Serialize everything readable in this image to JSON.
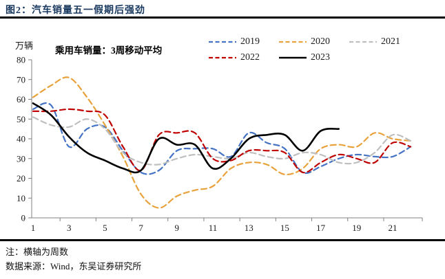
{
  "figure": {
    "title": "图2：汽车销量五一假期后强劲",
    "unit_label": "万辆",
    "annotation": "乘用车销量：3周移动平均",
    "note_axis": "注：横轴为周数",
    "note_source": "数据来源：Wind，东吴证券研究所"
  },
  "legend": {
    "items": [
      "2019",
      "2020",
      "2021",
      "2022",
      "2023"
    ]
  },
  "chart_data": {
    "type": "line",
    "title": "乘用车销量：3周移动平均",
    "xlabel": "周数",
    "ylabel": "万辆",
    "ylim": [
      0,
      80
    ],
    "xlim": [
      0.5,
      22.6
    ],
    "y_ticks": [
      0,
      10,
      20,
      30,
      40,
      50,
      60,
      70,
      80
    ],
    "x_ticks": [
      1,
      3,
      5,
      7,
      9,
      11,
      13,
      15,
      17,
      19,
      21
    ],
    "grid": false,
    "legend_position": "top",
    "line_style_note": "all years dashed except 2023 solid",
    "series": [
      {
        "name": "2019",
        "color": "#4472C4",
        "dashed": true,
        "x": [
          1,
          2,
          3,
          4,
          5,
          6,
          7,
          8,
          9,
          10,
          11,
          12,
          13,
          14,
          15,
          16,
          17,
          18,
          19,
          20,
          21,
          22
        ],
        "values": [
          55,
          57,
          36,
          45,
          46,
          34,
          23,
          24,
          34,
          35,
          35,
          31,
          43,
          38,
          35,
          23,
          26,
          30,
          32,
          31,
          31,
          36
        ]
      },
      {
        "name": "2020",
        "color": "#E9A23B",
        "dashed": true,
        "x": [
          1,
          2,
          3,
          4,
          5,
          6,
          7,
          8,
          9,
          10,
          11,
          12,
          13,
          14,
          15,
          16,
          17,
          18,
          19,
          20,
          21,
          22
        ],
        "values": [
          61,
          67,
          71,
          61,
          47,
          31,
          12,
          5,
          11,
          14,
          16,
          25,
          28,
          27,
          22,
          25,
          35,
          37,
          36,
          43,
          40,
          39
        ]
      },
      {
        "name": "2021",
        "color": "#BFBFBF",
        "dashed": true,
        "x": [
          1,
          2,
          3,
          4,
          5,
          6,
          7,
          8,
          9,
          10,
          11,
          12,
          13,
          14,
          15,
          16,
          17,
          18,
          19,
          20,
          21,
          22
        ],
        "values": [
          51,
          47,
          46,
          50,
          45,
          33,
          28,
          27,
          30,
          32,
          31,
          30,
          33,
          31,
          30,
          33,
          32,
          28,
          28,
          33,
          42,
          39
        ]
      },
      {
        "name": "2022",
        "color": "#C00000",
        "dashed": true,
        "x": [
          1,
          2,
          3,
          4,
          5,
          6,
          7,
          8,
          9,
          10,
          11,
          12,
          13,
          14,
          15,
          16,
          17,
          18,
          19,
          20,
          21,
          22
        ],
        "values": [
          54,
          54,
          55,
          54,
          52,
          36,
          24,
          42,
          43,
          43,
          30,
          29,
          34,
          34,
          33,
          23,
          28,
          32,
          30,
          28,
          38,
          36
        ]
      },
      {
        "name": "2023",
        "color": "#000000",
        "dashed": false,
        "x": [
          1,
          2,
          3,
          4,
          5,
          6,
          7,
          8,
          9,
          10,
          11,
          12,
          13,
          14,
          15,
          16,
          17,
          18
        ],
        "values": [
          58,
          52,
          41,
          33,
          29,
          25,
          24,
          40,
          37,
          37,
          25,
          30,
          40,
          42,
          42,
          34,
          44,
          45
        ]
      }
    ],
    "colors": {
      "title_navy": "#17375E",
      "axis_gray": "#808080",
      "series_2019": "#4472C4",
      "series_2020": "#E9A23B",
      "series_2021": "#BFBFBF",
      "series_2022": "#C00000",
      "series_2023": "#000000"
    }
  }
}
